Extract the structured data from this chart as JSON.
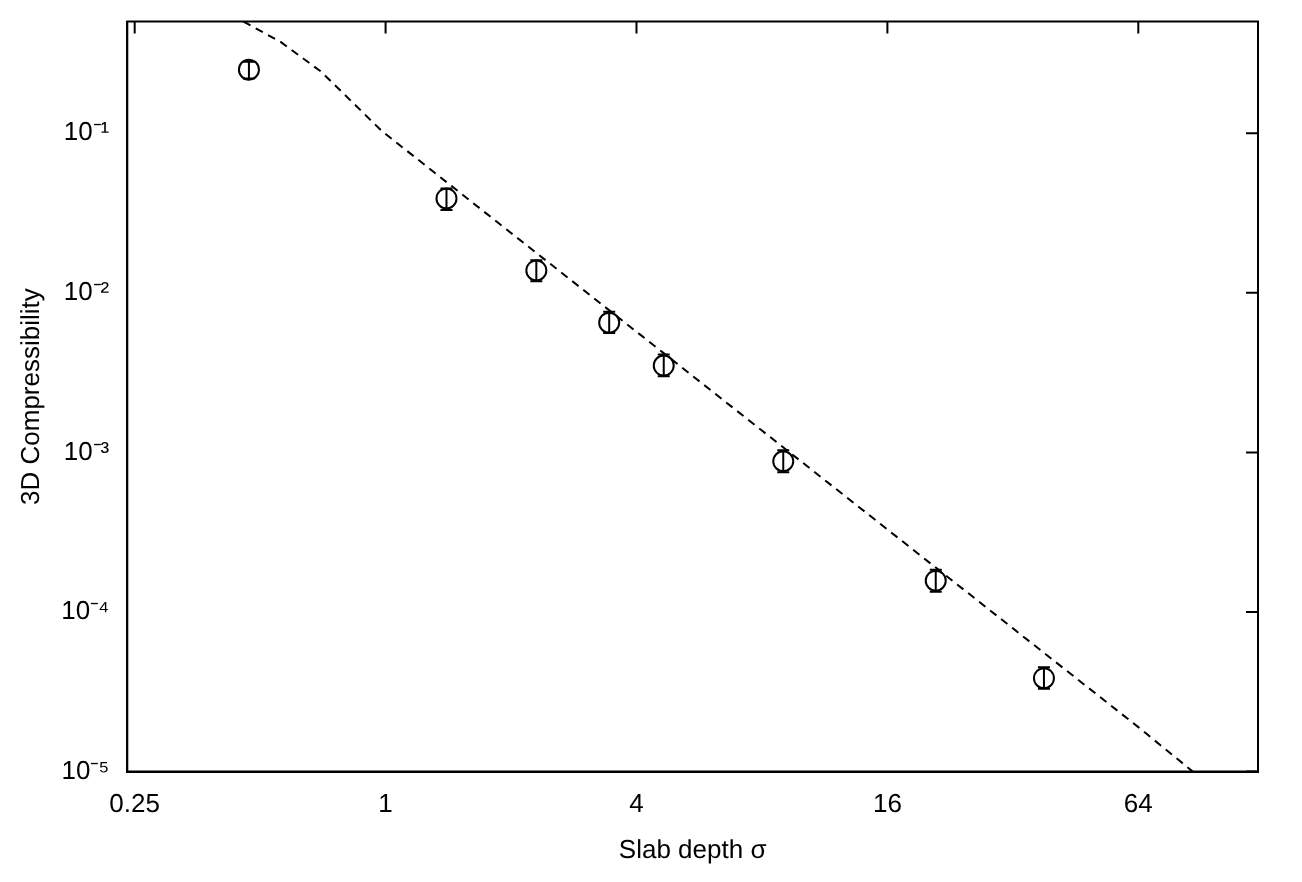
{
  "chart_data": {
    "type": "scatter",
    "xlabel": "Slab depth σ",
    "ylabel": "3D Compressibility",
    "log": "xy",
    "grid": false,
    "legend": false,
    "xlim": [
      0.24,
      124
    ],
    "xticks": [
      0.25,
      1,
      4,
      16,
      64
    ],
    "ylim": [
      1e-05,
      0.5
    ],
    "yticks": [
      {
        "value": 1e-05,
        "label": "10⁻⁵"
      },
      {
        "value": 0.0001,
        "label": "10⁻⁴"
      },
      {
        "value": 0.001,
        "label": "10⁻³"
      },
      {
        "value": 0.01,
        "label": "10⁻²"
      },
      {
        "value": 0.1,
        "label": "10⁻¹"
      }
    ],
    "series": [
      {
        "color": "#000000",
        "marker": "circle",
        "x": [
          0.47,
          1.4,
          2.3,
          3.44,
          4.65,
          9,
          20.9,
          38
        ],
        "values": [
          0.25,
          0.039,
          0.0138,
          0.0065,
          0.0035,
          0.00088,
          0.000157,
          3.85e-05
        ],
        "errors": [
          [
            0.22,
            0.28
          ],
          [
            0.033,
            0.045
          ],
          [
            0.0118,
            0.016
          ],
          [
            0.0056,
            0.0076
          ],
          [
            0.003,
            0.0041
          ],
          [
            0.00075,
            0.00103
          ],
          [
            0.000134,
            0.000184
          ],
          [
            3.3e-05,
            4.5e-05
          ]
        ]
      },
      {
        "type": "line",
        "color": "#000000",
        "marker": "none",
        "line_style": "dashed",
        "x": [
          0.456,
          0.56,
          0.7,
          0.98,
          2,
          4,
          8,
          16,
          32,
          64,
          86.5
        ],
        "values": [
          0.5,
          0.373,
          0.243,
          0.103,
          0.0237,
          0.0057,
          0.00137,
          0.000329,
          7.9e-05,
          1.9e-05,
          1e-05
        ]
      }
    ]
  }
}
